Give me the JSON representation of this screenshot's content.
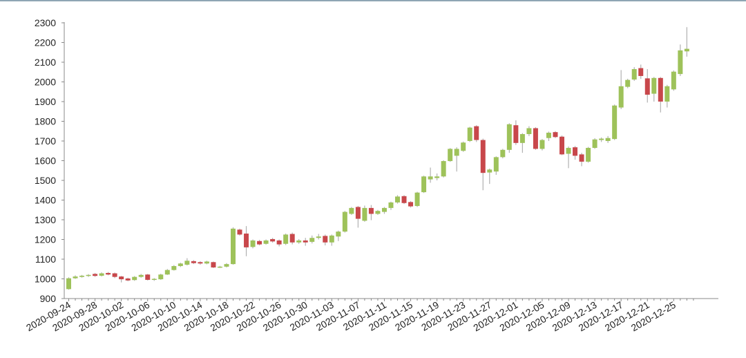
{
  "chart_data": {
    "type": "candlestick",
    "title": "",
    "xlabel": "",
    "ylabel": "",
    "ylim": [
      900,
      2300
    ],
    "yticks": [
      900,
      1000,
      1100,
      1200,
      1300,
      1400,
      1500,
      1600,
      1700,
      1800,
      1900,
      2000,
      2100,
      2200,
      2300
    ],
    "xtick_labels": [
      "2020-09-24",
      "2020-09-28",
      "2020-10-02",
      "2020-10-06",
      "2020-10-10",
      "2020-10-14",
      "2020-10-18",
      "2020-10-22",
      "2020-10-26",
      "2020-10-30",
      "2020-11-03",
      "2020-11-07",
      "2020-11-11",
      "2020-11-15",
      "2020-11-19",
      "2020-11-23",
      "2020-11-27",
      "2020-12-01",
      "2020-12-05",
      "2020-12-09",
      "2020-12-13",
      "2020-12-17",
      "2020-12-21",
      "2020-12-25"
    ],
    "date_range": [
      "2020-09-24",
      "2020-12-27"
    ],
    "grid": false,
    "legend": "none",
    "colors": {
      "up": "#9ec25a",
      "down": "#c8474b",
      "wick": "#b0b0b0",
      "axis": "#888888",
      "top_rule": "#8fa6b4"
    },
    "candles": [
      {
        "date": "2020-09-24",
        "open": 948,
        "close": 1003,
        "high": 1008,
        "low": 945
      },
      {
        "date": "2020-09-25",
        "open": 1003,
        "close": 1012,
        "high": 1018,
        "low": 1000
      },
      {
        "date": "2020-09-26",
        "open": 1010,
        "close": 1016,
        "high": 1020,
        "low": 1006
      },
      {
        "date": "2020-09-27",
        "open": 1015,
        "close": 1020,
        "high": 1024,
        "low": 1010
      },
      {
        "date": "2020-09-28",
        "open": 1025,
        "close": 1015,
        "high": 1030,
        "low": 1010
      },
      {
        "date": "2020-09-29",
        "open": 1016,
        "close": 1028,
        "high": 1033,
        "low": 1012
      },
      {
        "date": "2020-09-30",
        "open": 1030,
        "close": 1022,
        "high": 1035,
        "low": 1018
      },
      {
        "date": "2020-10-01",
        "open": 1028,
        "close": 1010,
        "high": 1032,
        "low": 1004
      },
      {
        "date": "2020-10-02",
        "open": 1012,
        "close": 998,
        "high": 1015,
        "low": 982
      },
      {
        "date": "2020-10-03",
        "open": 1002,
        "close": 992,
        "high": 1006,
        "low": 988
      },
      {
        "date": "2020-10-04",
        "open": 994,
        "close": 1010,
        "high": 1014,
        "low": 990
      },
      {
        "date": "2020-10-05",
        "open": 1010,
        "close": 1020,
        "high": 1025,
        "low": 1006
      },
      {
        "date": "2020-10-06",
        "open": 1022,
        "close": 995,
        "high": 1025,
        "low": 992
      },
      {
        "date": "2020-10-07",
        "open": 996,
        "close": 1000,
        "high": 1004,
        "low": 990
      },
      {
        "date": "2020-10-08",
        "open": 998,
        "close": 1022,
        "high": 1026,
        "low": 995
      },
      {
        "date": "2020-10-09",
        "open": 1022,
        "close": 1045,
        "high": 1050,
        "low": 1020
      },
      {
        "date": "2020-10-10",
        "open": 1045,
        "close": 1065,
        "high": 1070,
        "low": 1042
      },
      {
        "date": "2020-10-11",
        "open": 1065,
        "close": 1078,
        "high": 1082,
        "low": 1060
      },
      {
        "date": "2020-10-12",
        "open": 1072,
        "close": 1092,
        "high": 1105,
        "low": 1068
      },
      {
        "date": "2020-10-13",
        "open": 1090,
        "close": 1080,
        "high": 1095,
        "low": 1075
      },
      {
        "date": "2020-10-14",
        "open": 1085,
        "close": 1078,
        "high": 1090,
        "low": 1072
      },
      {
        "date": "2020-10-15",
        "open": 1078,
        "close": 1088,
        "high": 1092,
        "low": 1074
      },
      {
        "date": "2020-10-16",
        "open": 1085,
        "close": 1058,
        "high": 1088,
        "low": 1055
      },
      {
        "date": "2020-10-17",
        "open": 1058,
        "close": 1062,
        "high": 1066,
        "low": 1055
      },
      {
        "date": "2020-10-18",
        "open": 1062,
        "close": 1075,
        "high": 1080,
        "low": 1058
      },
      {
        "date": "2020-10-19",
        "open": 1075,
        "close": 1255,
        "high": 1262,
        "low": 1072
      },
      {
        "date": "2020-10-20",
        "open": 1250,
        "close": 1225,
        "high": 1255,
        "low": 1220
      },
      {
        "date": "2020-10-21",
        "open": 1230,
        "close": 1160,
        "high": 1268,
        "low": 1115
      },
      {
        "date": "2020-10-22",
        "open": 1162,
        "close": 1195,
        "high": 1200,
        "low": 1155
      },
      {
        "date": "2020-10-23",
        "open": 1192,
        "close": 1175,
        "high": 1198,
        "low": 1170
      },
      {
        "date": "2020-10-24",
        "open": 1178,
        "close": 1195,
        "high": 1200,
        "low": 1174
      },
      {
        "date": "2020-10-25",
        "open": 1202,
        "close": 1190,
        "high": 1208,
        "low": 1184
      },
      {
        "date": "2020-10-26",
        "open": 1195,
        "close": 1175,
        "high": 1200,
        "low": 1165
      },
      {
        "date": "2020-10-27",
        "open": 1178,
        "close": 1225,
        "high": 1230,
        "low": 1172
      },
      {
        "date": "2020-10-28",
        "open": 1228,
        "close": 1185,
        "high": 1235,
        "low": 1175
      },
      {
        "date": "2020-10-29",
        "open": 1185,
        "close": 1195,
        "high": 1202,
        "low": 1178
      },
      {
        "date": "2020-10-30",
        "open": 1195,
        "close": 1185,
        "high": 1208,
        "low": 1168
      },
      {
        "date": "2020-10-31",
        "open": 1188,
        "close": 1208,
        "high": 1220,
        "low": 1180
      },
      {
        "date": "2020-11-01",
        "open": 1208,
        "close": 1215,
        "high": 1228,
        "low": 1200
      },
      {
        "date": "2020-11-02",
        "open": 1218,
        "close": 1185,
        "high": 1225,
        "low": 1170
      },
      {
        "date": "2020-11-03",
        "open": 1185,
        "close": 1220,
        "high": 1225,
        "low": 1168
      },
      {
        "date": "2020-11-04",
        "open": 1215,
        "close": 1240,
        "high": 1245,
        "low": 1192
      },
      {
        "date": "2020-11-05",
        "open": 1240,
        "close": 1340,
        "high": 1345,
        "low": 1235
      },
      {
        "date": "2020-11-06",
        "open": 1330,
        "close": 1360,
        "high": 1365,
        "low": 1325
      },
      {
        "date": "2020-11-07",
        "open": 1365,
        "close": 1305,
        "high": 1370,
        "low": 1260
      },
      {
        "date": "2020-11-08",
        "open": 1295,
        "close": 1360,
        "high": 1372,
        "low": 1290
      },
      {
        "date": "2020-11-09",
        "open": 1360,
        "close": 1330,
        "high": 1375,
        "low": 1298
      },
      {
        "date": "2020-11-10",
        "open": 1330,
        "close": 1345,
        "high": 1350,
        "low": 1325
      },
      {
        "date": "2020-11-11",
        "open": 1340,
        "close": 1360,
        "high": 1365,
        "low": 1330
      },
      {
        "date": "2020-11-12",
        "open": 1360,
        "close": 1388,
        "high": 1392,
        "low": 1350
      },
      {
        "date": "2020-11-13",
        "open": 1388,
        "close": 1418,
        "high": 1425,
        "low": 1382
      },
      {
        "date": "2020-11-14",
        "open": 1420,
        "close": 1385,
        "high": 1425,
        "low": 1380
      },
      {
        "date": "2020-11-15",
        "open": 1390,
        "close": 1368,
        "high": 1395,
        "low": 1362
      },
      {
        "date": "2020-11-16",
        "open": 1370,
        "close": 1438,
        "high": 1442,
        "low": 1365
      },
      {
        "date": "2020-11-17",
        "open": 1440,
        "close": 1520,
        "high": 1524,
        "low": 1436
      },
      {
        "date": "2020-11-18",
        "open": 1505,
        "close": 1520,
        "high": 1565,
        "low": 1488
      },
      {
        "date": "2020-11-19",
        "open": 1512,
        "close": 1520,
        "high": 1535,
        "low": 1500
      },
      {
        "date": "2020-11-20",
        "open": 1520,
        "close": 1598,
        "high": 1602,
        "low": 1515
      },
      {
        "date": "2020-11-21",
        "open": 1598,
        "close": 1660,
        "high": 1664,
        "low": 1594
      },
      {
        "date": "2020-11-22",
        "open": 1625,
        "close": 1660,
        "high": 1668,
        "low": 1545
      },
      {
        "date": "2020-11-23",
        "open": 1650,
        "close": 1692,
        "high": 1697,
        "low": 1645
      },
      {
        "date": "2020-11-24",
        "open": 1700,
        "close": 1768,
        "high": 1772,
        "low": 1695
      },
      {
        "date": "2020-11-25",
        "open": 1775,
        "close": 1705,
        "high": 1780,
        "low": 1695
      },
      {
        "date": "2020-11-26",
        "open": 1705,
        "close": 1538,
        "high": 1712,
        "low": 1450
      },
      {
        "date": "2020-11-27",
        "open": 1540,
        "close": 1555,
        "high": 1560,
        "low": 1482
      },
      {
        "date": "2020-11-28",
        "open": 1545,
        "close": 1618,
        "high": 1622,
        "low": 1528
      },
      {
        "date": "2020-11-29",
        "open": 1618,
        "close": 1655,
        "high": 1660,
        "low": 1612
      },
      {
        "date": "2020-11-30",
        "open": 1655,
        "close": 1785,
        "high": 1790,
        "low": 1640
      },
      {
        "date": "2020-12-01",
        "open": 1780,
        "close": 1690,
        "high": 1805,
        "low": 1680
      },
      {
        "date": "2020-12-02",
        "open": 1690,
        "close": 1735,
        "high": 1740,
        "low": 1640
      },
      {
        "date": "2020-12-03",
        "open": 1735,
        "close": 1765,
        "high": 1775,
        "low": 1725
      },
      {
        "date": "2020-12-04",
        "open": 1765,
        "close": 1660,
        "high": 1770,
        "low": 1655
      },
      {
        "date": "2020-12-05",
        "open": 1660,
        "close": 1705,
        "high": 1710,
        "low": 1652
      },
      {
        "date": "2020-12-06",
        "open": 1715,
        "close": 1742,
        "high": 1748,
        "low": 1700
      },
      {
        "date": "2020-12-07",
        "open": 1745,
        "close": 1720,
        "high": 1750,
        "low": 1715
      },
      {
        "date": "2020-12-08",
        "open": 1722,
        "close": 1632,
        "high": 1728,
        "low": 1628
      },
      {
        "date": "2020-12-09",
        "open": 1635,
        "close": 1665,
        "high": 1672,
        "low": 1562
      },
      {
        "date": "2020-12-10",
        "open": 1668,
        "close": 1625,
        "high": 1675,
        "low": 1605
      },
      {
        "date": "2020-12-11",
        "open": 1632,
        "close": 1595,
        "high": 1640,
        "low": 1572
      },
      {
        "date": "2020-12-12",
        "open": 1595,
        "close": 1665,
        "high": 1670,
        "low": 1590
      },
      {
        "date": "2020-12-13",
        "open": 1665,
        "close": 1708,
        "high": 1714,
        "low": 1660
      },
      {
        "date": "2020-12-14",
        "open": 1705,
        "close": 1712,
        "high": 1718,
        "low": 1695
      },
      {
        "date": "2020-12-15",
        "open": 1700,
        "close": 1715,
        "high": 1725,
        "low": 1690
      },
      {
        "date": "2020-12-16",
        "open": 1710,
        "close": 1880,
        "high": 1885,
        "low": 1705
      },
      {
        "date": "2020-12-17",
        "open": 1870,
        "close": 1978,
        "high": 2060,
        "low": 1862
      },
      {
        "date": "2020-12-18",
        "open": 1975,
        "close": 2010,
        "high": 2016,
        "low": 1968
      },
      {
        "date": "2020-12-19",
        "open": 2012,
        "close": 2065,
        "high": 2075,
        "low": 2005
      },
      {
        "date": "2020-12-20",
        "open": 2070,
        "close": 2030,
        "high": 2088,
        "low": 2015
      },
      {
        "date": "2020-12-21",
        "open": 2018,
        "close": 1935,
        "high": 2065,
        "low": 1895
      },
      {
        "date": "2020-12-22",
        "open": 1940,
        "close": 2020,
        "high": 2025,
        "low": 1900
      },
      {
        "date": "2020-12-23",
        "open": 2020,
        "close": 1900,
        "high": 2025,
        "low": 1845
      },
      {
        "date": "2020-12-24",
        "open": 1900,
        "close": 1978,
        "high": 1985,
        "low": 1870
      },
      {
        "date": "2020-12-25",
        "open": 1962,
        "close": 2052,
        "high": 2058,
        "low": 1955
      },
      {
        "date": "2020-12-26",
        "open": 2040,
        "close": 2160,
        "high": 2190,
        "low": 2030
      },
      {
        "date": "2020-12-27",
        "open": 2155,
        "close": 2168,
        "high": 2278,
        "low": 2128
      }
    ]
  }
}
